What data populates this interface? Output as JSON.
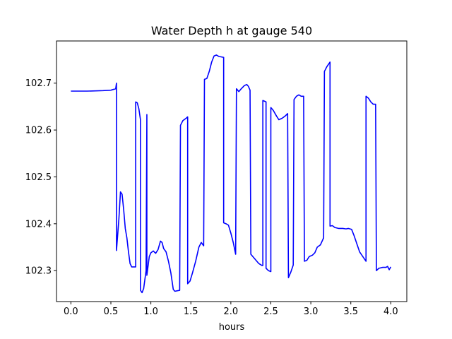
{
  "chart_data": {
    "type": "line",
    "title": "Water Depth h at gauge 540",
    "xlabel": "hours",
    "ylabel": "",
    "xlim": [
      -0.18,
      4.2
    ],
    "ylim": [
      102.234,
      102.79
    ],
    "xticks": [
      0.0,
      0.5,
      1.0,
      1.5,
      2.0,
      2.5,
      3.0,
      3.5,
      4.0
    ],
    "xtick_labels": [
      "0.0",
      "0.5",
      "1.0",
      "1.5",
      "2.0",
      "2.5",
      "3.0",
      "3.5",
      "4.0"
    ],
    "yticks": [
      102.3,
      102.4,
      102.5,
      102.6,
      102.7
    ],
    "ytick_labels": [
      "102.3",
      "102.4",
      "102.5",
      "102.6",
      "102.7"
    ],
    "grid": false,
    "series": [
      {
        "color": "#0000ff",
        "points": [
          [
            0.0,
            102.683
          ],
          [
            0.2,
            102.683
          ],
          [
            0.4,
            102.684
          ],
          [
            0.5,
            102.685
          ],
          [
            0.56,
            102.688
          ],
          [
            0.57,
            102.7
          ],
          [
            0.57,
            102.343
          ],
          [
            0.6,
            102.41
          ],
          [
            0.62,
            102.468
          ],
          [
            0.64,
            102.463
          ],
          [
            0.66,
            102.43
          ],
          [
            0.68,
            102.39
          ],
          [
            0.7,
            102.37
          ],
          [
            0.72,
            102.34
          ],
          [
            0.74,
            102.315
          ],
          [
            0.76,
            102.308
          ],
          [
            0.81,
            102.308
          ],
          [
            0.81,
            102.66
          ],
          [
            0.83,
            102.658
          ],
          [
            0.85,
            102.645
          ],
          [
            0.87,
            102.622
          ],
          [
            0.87,
            102.258
          ],
          [
            0.89,
            102.253
          ],
          [
            0.91,
            102.262
          ],
          [
            0.94,
            102.3
          ],
          [
            0.95,
            102.633
          ],
          [
            0.95,
            102.29
          ],
          [
            0.98,
            102.33
          ],
          [
            1.0,
            102.338
          ],
          [
            1.03,
            102.342
          ],
          [
            1.06,
            102.337
          ],
          [
            1.09,
            102.345
          ],
          [
            1.12,
            102.363
          ],
          [
            1.14,
            102.36
          ],
          [
            1.16,
            102.347
          ],
          [
            1.19,
            102.34
          ],
          [
            1.22,
            102.32
          ],
          [
            1.25,
            102.295
          ],
          [
            1.28,
            102.26
          ],
          [
            1.3,
            102.256
          ],
          [
            1.36,
            102.258
          ],
          [
            1.37,
            102.61
          ],
          [
            1.4,
            102.62
          ],
          [
            1.44,
            102.625
          ],
          [
            1.46,
            102.628
          ],
          [
            1.46,
            102.272
          ],
          [
            1.49,
            102.278
          ],
          [
            1.52,
            102.295
          ],
          [
            1.56,
            102.32
          ],
          [
            1.6,
            102.35
          ],
          [
            1.63,
            102.36
          ],
          [
            1.66,
            102.353
          ],
          [
            1.67,
            102.708
          ],
          [
            1.7,
            102.71
          ],
          [
            1.73,
            102.725
          ],
          [
            1.76,
            102.745
          ],
          [
            1.79,
            102.758
          ],
          [
            1.82,
            102.76
          ],
          [
            1.85,
            102.757
          ],
          [
            1.91,
            102.755
          ],
          [
            1.91,
            102.402
          ],
          [
            1.94,
            102.4
          ],
          [
            1.97,
            102.397
          ],
          [
            2.0,
            102.38
          ],
          [
            2.03,
            102.36
          ],
          [
            2.06,
            102.335
          ],
          [
            2.07,
            102.688
          ],
          [
            2.1,
            102.682
          ],
          [
            2.13,
            102.688
          ],
          [
            2.17,
            102.695
          ],
          [
            2.2,
            102.697
          ],
          [
            2.22,
            102.693
          ],
          [
            2.24,
            102.685
          ],
          [
            2.25,
            102.335
          ],
          [
            2.3,
            102.325
          ],
          [
            2.35,
            102.315
          ],
          [
            2.39,
            102.311
          ],
          [
            2.4,
            102.311
          ],
          [
            2.4,
            102.663
          ],
          [
            2.44,
            102.66
          ],
          [
            2.44,
            102.305
          ],
          [
            2.47,
            102.3
          ],
          [
            2.5,
            102.298
          ],
          [
            2.5,
            102.648
          ],
          [
            2.53,
            102.642
          ],
          [
            2.57,
            102.63
          ],
          [
            2.6,
            102.622
          ],
          [
            2.64,
            102.625
          ],
          [
            2.68,
            102.63
          ],
          [
            2.71,
            102.635
          ],
          [
            2.72,
            102.285
          ],
          [
            2.75,
            102.297
          ],
          [
            2.78,
            102.312
          ],
          [
            2.79,
            102.665
          ],
          [
            2.82,
            102.672
          ],
          [
            2.85,
            102.675
          ],
          [
            2.88,
            102.672
          ],
          [
            2.91,
            102.672
          ],
          [
            2.92,
            102.32
          ],
          [
            2.95,
            102.322
          ],
          [
            2.98,
            102.33
          ],
          [
            3.02,
            102.333
          ],
          [
            3.05,
            102.338
          ],
          [
            3.08,
            102.35
          ],
          [
            3.12,
            102.355
          ],
          [
            3.16,
            102.37
          ],
          [
            3.17,
            102.725
          ],
          [
            3.2,
            102.735
          ],
          [
            3.24,
            102.745
          ],
          [
            3.24,
            102.395
          ],
          [
            3.27,
            102.396
          ],
          [
            3.3,
            102.392
          ],
          [
            3.35,
            102.39
          ],
          [
            3.4,
            102.39
          ],
          [
            3.44,
            102.389
          ],
          [
            3.47,
            102.39
          ],
          [
            3.51,
            102.388
          ],
          [
            3.54,
            102.375
          ],
          [
            3.58,
            102.355
          ],
          [
            3.61,
            102.34
          ],
          [
            3.65,
            102.33
          ],
          [
            3.69,
            102.32
          ],
          [
            3.69,
            102.672
          ],
          [
            3.72,
            102.668
          ],
          [
            3.75,
            102.66
          ],
          [
            3.78,
            102.655
          ],
          [
            3.81,
            102.655
          ],
          [
            3.82,
            102.3
          ],
          [
            3.85,
            102.305
          ],
          [
            3.9,
            102.307
          ],
          [
            3.94,
            102.307
          ],
          [
            3.96,
            102.309
          ],
          [
            3.98,
            102.302
          ],
          [
            4.0,
            102.308
          ]
        ]
      }
    ]
  }
}
